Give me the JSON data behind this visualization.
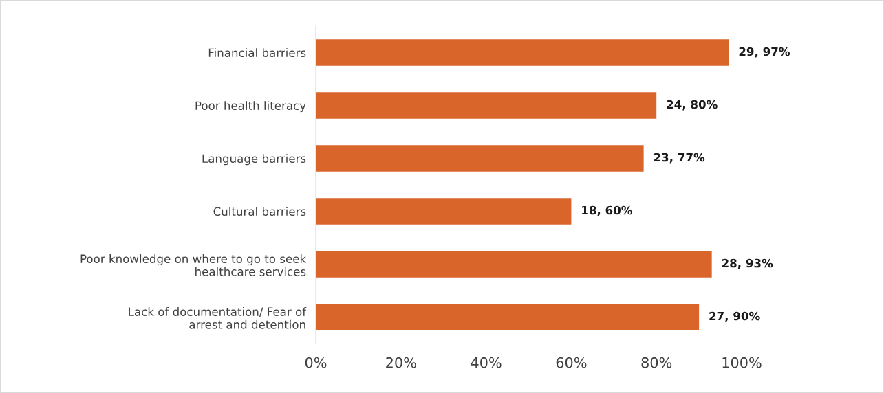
{
  "chart_data": {
    "type": "bar",
    "orientation": "horizontal",
    "categories": [
      "Financial barriers",
      "Poor health literacy",
      "Language barriers",
      "Cultural barriers",
      "Poor knowledge on where to go to seek\nhealthcare services",
      "Lack of documentation/ Fear of\narrest and detention"
    ],
    "values": [
      97,
      80,
      77,
      60,
      93,
      90
    ],
    "value_labels": [
      "29, 97%",
      "24, 80%",
      "23, 77%",
      "18, 60%",
      "28, 93%",
      "27, 90%"
    ],
    "color": "#d9652b",
    "xlim": [
      0,
      100
    ],
    "xticks": [
      {
        "value": 0,
        "label": "0%"
      },
      {
        "value": 20,
        "label": "20%"
      },
      {
        "value": 40,
        "label": "40%"
      },
      {
        "value": 60,
        "label": "60%"
      },
      {
        "value": 80,
        "label": "80%"
      },
      {
        "value": 100,
        "label": "100%"
      }
    ],
    "grid": false,
    "legend": false
  }
}
